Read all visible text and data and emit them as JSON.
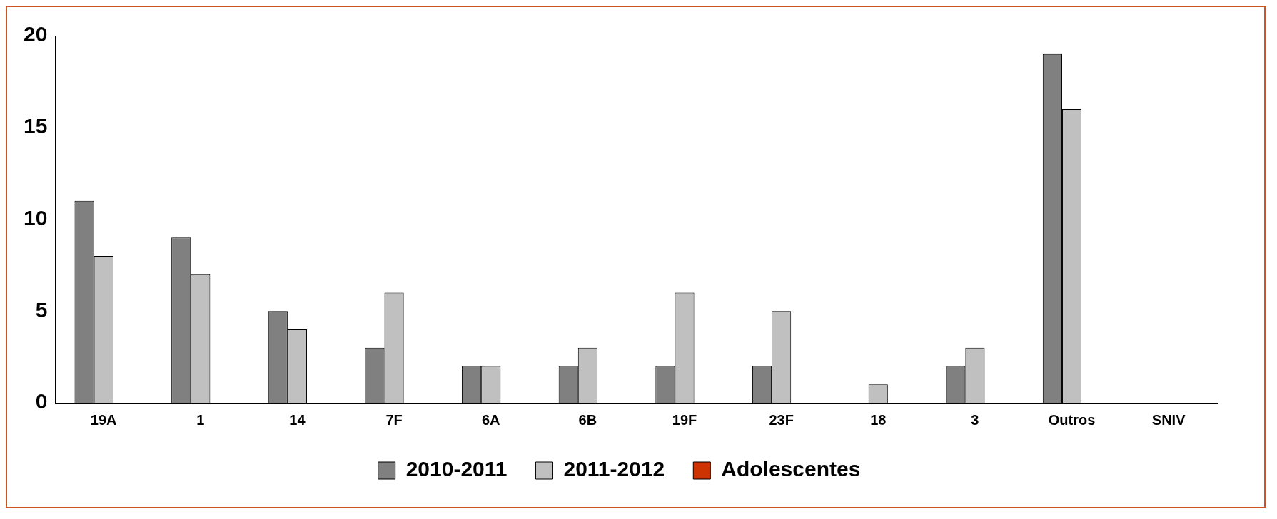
{
  "chart_data": {
    "type": "bar",
    "categories": [
      "19A",
      "1",
      "14",
      "7F",
      "6A",
      "6B",
      "19F",
      "23F",
      "18",
      "3",
      "Outros",
      "SNIV"
    ],
    "series": [
      {
        "name": "2010-2011",
        "color": "#808080",
        "values": [
          11,
          9,
          5,
          3,
          2,
          2,
          2,
          2,
          0,
          2,
          19,
          0
        ]
      },
      {
        "name": "2011-2012",
        "color": "#c0c0c0",
        "values": [
          8,
          7,
          4,
          6,
          2,
          3,
          6,
          5,
          1,
          3,
          16,
          0
        ]
      },
      {
        "name": "Adolescentes",
        "color": "#cc3300",
        "values": [
          null,
          null,
          null,
          null,
          null,
          null,
          null,
          null,
          null,
          null,
          null,
          null
        ]
      }
    ],
    "ylim": [
      0,
      20
    ],
    "yticks": [
      0,
      5,
      10,
      15,
      20
    ],
    "grid": false,
    "legend": "bottom"
  }
}
